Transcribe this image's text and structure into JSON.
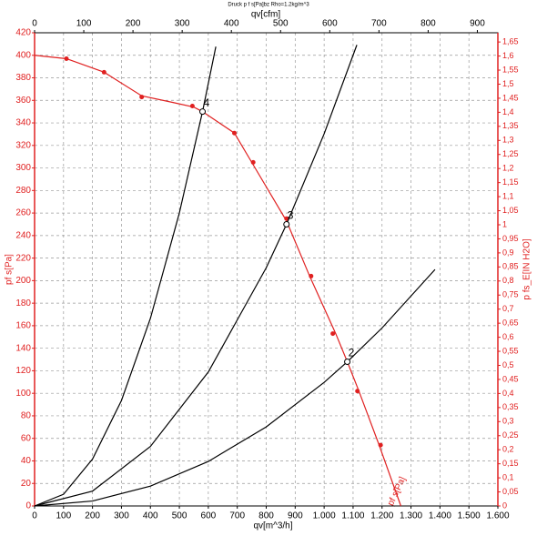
{
  "chart_data": {
    "type": "line",
    "title": "Druck p f s[Pa]bz Rho=1.2kg/m^3",
    "x_label": "qv[m^3/h]",
    "x2_label": "qv[cfm]",
    "y_label": "pf s[Pa]",
    "y2_label": "p fs_E[IN H2O]",
    "curve_label": "pf s[Pa]",
    "xlim": [
      0,
      1600
    ],
    "xticks": [
      0,
      100,
      200,
      300,
      400,
      500,
      600,
      700,
      800,
      900,
      {
        "value": 1000,
        "label": "1.000"
      },
      {
        "value": 1100,
        "label": "1.100"
      },
      {
        "value": 1200,
        "label": "1.200"
      },
      {
        "value": 1300,
        "label": "1.300"
      },
      {
        "value": 1400,
        "label": "1.400"
      },
      {
        "value": 1500,
        "label": "1.500"
      },
      {
        "value": 1600,
        "label": "1.600"
      }
    ],
    "x2lim": [
      0,
      941.7
    ],
    "x2ticks": [
      0,
      100,
      200,
      300,
      400,
      500,
      600,
      700,
      800,
      900
    ],
    "ylim": [
      0,
      420
    ],
    "yticks": [
      0,
      20,
      40,
      60,
      80,
      100,
      120,
      140,
      160,
      180,
      200,
      220,
      240,
      260,
      280,
      300,
      320,
      340,
      360,
      380,
      400,
      420
    ],
    "y2lim": [
      0,
      1.6828
    ],
    "y2ticks": [
      0,
      {
        "value": 0.05,
        "label": "0,05"
      },
      {
        "value": 0.1,
        "label": "0,1"
      },
      {
        "value": 0.15,
        "label": "0,15"
      },
      {
        "value": 0.2,
        "label": "0,2"
      },
      {
        "value": 0.25,
        "label": "0,25"
      },
      {
        "value": 0.3,
        "label": "0,3"
      },
      {
        "value": 0.35,
        "label": "0,35"
      },
      {
        "value": 0.4,
        "label": "0,4"
      },
      {
        "value": 0.45,
        "label": "0,45"
      },
      {
        "value": 0.5,
        "label": "0,5"
      },
      {
        "value": 0.55,
        "label": "0,55"
      },
      {
        "value": 0.6,
        "label": "0,6"
      },
      {
        "value": 0.65,
        "label": "0,65"
      },
      {
        "value": 0.7,
        "label": "0,7"
      },
      {
        "value": 0.75,
        "label": "0,75"
      },
      {
        "value": 0.8,
        "label": "0,8"
      },
      {
        "value": 0.85,
        "label": "0,85"
      },
      {
        "value": 0.9,
        "label": "0,9"
      },
      {
        "value": 0.95,
        "label": "0,95"
      },
      1,
      {
        "value": 1.05,
        "label": "1,05"
      },
      {
        "value": 1.1,
        "label": "1,1"
      },
      {
        "value": 1.15,
        "label": "1,15"
      },
      {
        "value": 1.2,
        "label": "1,2"
      },
      {
        "value": 1.25,
        "label": "1,25"
      },
      {
        "value": 1.3,
        "label": "1,3"
      },
      {
        "value": 1.35,
        "label": "1,35"
      },
      {
        "value": 1.4,
        "label": "1,4"
      },
      {
        "value": 1.45,
        "label": "1,45"
      },
      {
        "value": 1.5,
        "label": "1,5"
      },
      {
        "value": 1.55,
        "label": "1,55"
      },
      {
        "value": 1.6,
        "label": "1,6"
      },
      {
        "value": 1.65,
        "label": "1,65"
      }
    ],
    "grid": true,
    "series": [
      {
        "color": "#e02020",
        "mode": "lines",
        "x": [
          0,
          110,
          240,
          370,
          480,
          550,
          580,
          690,
          750,
          870,
          950,
          1040,
          1080,
          1120,
          1190,
          1265
        ],
        "values": [
          400,
          397,
          385,
          364,
          358,
          354,
          350,
          331,
          305,
          253,
          204,
          153,
          128,
          102,
          54,
          0
        ]
      },
      {
        "color": "#e02020",
        "mode": "markers",
        "x": [
          110,
          240,
          370,
          545,
          690,
          755,
          870,
          955,
          1030,
          1115,
          1195
        ],
        "values": [
          397,
          385,
          363,
          355,
          331,
          305,
          255,
          204,
          153,
          102,
          54
        ]
      },
      {
        "color": "#000000",
        "mode": "lines",
        "x": [
          0,
          100,
          200,
          300,
          400,
          500,
          580,
          626
        ],
        "values": [
          0,
          10.4,
          41.6,
          93.6,
          166.5,
          260.1,
          350,
          407.7
        ]
      },
      {
        "color": "#000000",
        "mode": "lines",
        "x": [
          0,
          200,
          400,
          600,
          800,
          870,
          1000,
          1113
        ],
        "values": [
          0,
          13.2,
          52.8,
          118.9,
          211.4,
          250,
          330.3,
          409.2
        ]
      },
      {
        "color": "#000000",
        "mode": "lines",
        "x": [
          0,
          200,
          400,
          600,
          800,
          1000,
          1080,
          1200,
          1383
        ],
        "values": [
          0,
          4.4,
          17.6,
          39.5,
          70.2,
          109.7,
          128,
          158,
          209.9
        ]
      }
    ],
    "annotations": [
      {
        "x": 580,
        "y": 350,
        "text": "4"
      },
      {
        "x": 870,
        "y": 250,
        "text": "3"
      },
      {
        "x": 1080,
        "y": 128,
        "text": "2"
      }
    ]
  }
}
